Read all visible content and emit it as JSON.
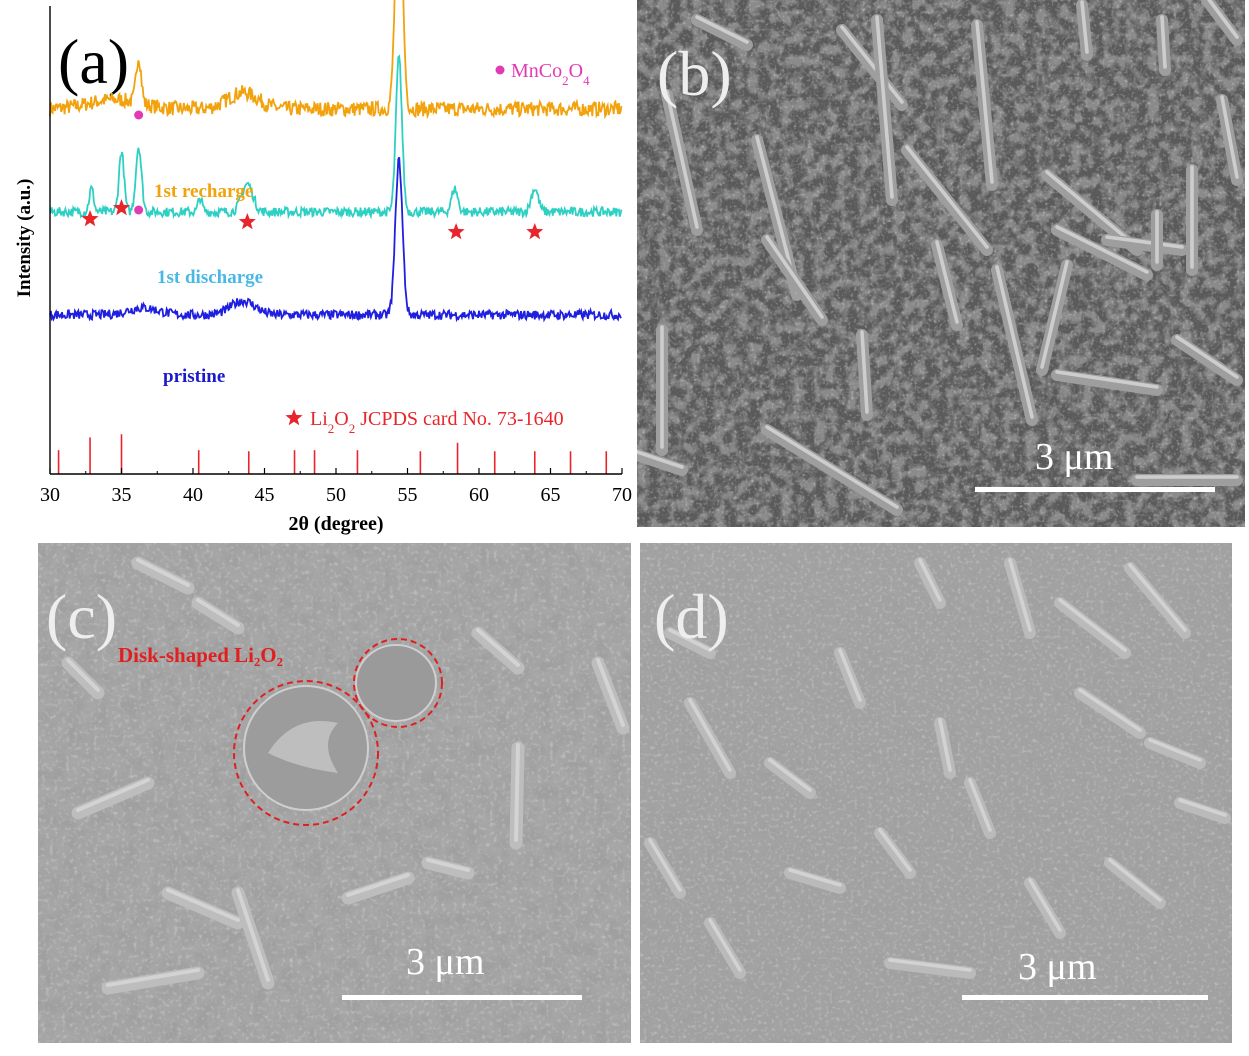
{
  "panels": {
    "a": {
      "label": "(a)"
    },
    "b": {
      "label": "(b)",
      "scale_bar": "3 μm"
    },
    "c": {
      "label": "(c)",
      "scale_bar": "3 μm",
      "annotation": "Disk-shaped Li₂O₂"
    },
    "d": {
      "label": "(d)",
      "scale_bar": "3 μm"
    }
  },
  "colors": {
    "recharge": "#f2a20c",
    "discharge": "#2fd0c4",
    "discharge_label": "#4ab8e6",
    "pristine": "#1f1fe0",
    "pristine_label": "#1a1acc",
    "marker_star": "#e8252a",
    "marker_dot": "#e23ab4",
    "reference": "#e8252a",
    "annotation": "#e02020"
  },
  "chart_data": {
    "type": "line",
    "title": "",
    "xlabel": "2θ (degree)",
    "ylabel": "Intensity (a.u.)",
    "xlim": [
      30,
      70
    ],
    "xticks": [
      30,
      35,
      40,
      45,
      50,
      55,
      60,
      65,
      70
    ],
    "yticks_shown": false,
    "series": [
      {
        "name": "1st recharge",
        "baseline": 0.78,
        "noise": 0.016,
        "peaks": [
          [
            36.2,
            0.1,
            0.25
          ],
          [
            43.5,
            0.035,
            1.5
          ],
          [
            54.4,
            0.5,
            0.35
          ],
          [
            34.5,
            0.02,
            2.5
          ]
        ]
      },
      {
        "name": "1st discharge",
        "baseline": 0.56,
        "noise": 0.01,
        "peaks": [
          [
            32.9,
            0.05,
            0.22
          ],
          [
            35.0,
            0.13,
            0.25
          ],
          [
            36.2,
            0.14,
            0.28
          ],
          [
            40.5,
            0.03,
            0.2
          ],
          [
            43.8,
            0.06,
            0.55
          ],
          [
            54.4,
            0.33,
            0.3
          ],
          [
            58.3,
            0.05,
            0.3
          ],
          [
            63.9,
            0.05,
            0.35
          ]
        ]
      },
      {
        "name": "pristine",
        "baseline": 0.34,
        "noise": 0.01,
        "peaks": [
          [
            36.5,
            0.015,
            1.5
          ],
          [
            43.5,
            0.03,
            1.2
          ],
          [
            54.4,
            0.33,
            0.35
          ]
        ]
      }
    ],
    "markers": {
      "MnCo2O4": {
        "symbol": "dot",
        "positions": [
          [
            36.2,
            "1st recharge"
          ],
          [
            36.2,
            "1st discharge"
          ]
        ]
      },
      "Li2O2": {
        "symbol": "star",
        "positions": [
          32.8,
          35.0,
          43.8,
          58.4,
          63.9
        ]
      }
    },
    "legend": [
      {
        "symbol": "dot",
        "text_parts": [
          "MnCo",
          "2",
          "O",
          "4"
        ]
      },
      {
        "symbol": "star",
        "text_parts": [
          "Li",
          "2",
          "O",
          "2",
          " JCPDS card No. 73-1640"
        ]
      }
    ],
    "reference_lines": {
      "label": "Li2O2 JCPDS card No. 73-1640",
      "lines": [
        [
          30.6,
          0.26
        ],
        [
          32.8,
          0.5
        ],
        [
          35.0,
          0.56
        ],
        [
          40.4,
          0.26
        ],
        [
          43.9,
          0.24
        ],
        [
          47.1,
          0.26
        ],
        [
          48.5,
          0.26
        ],
        [
          51.5,
          0.26
        ],
        [
          55.9,
          0.24
        ],
        [
          58.5,
          0.4
        ],
        [
          61.1,
          0.24
        ],
        [
          63.9,
          0.24
        ],
        [
          66.4,
          0.24
        ],
        [
          68.9,
          0.24
        ]
      ]
    }
  }
}
